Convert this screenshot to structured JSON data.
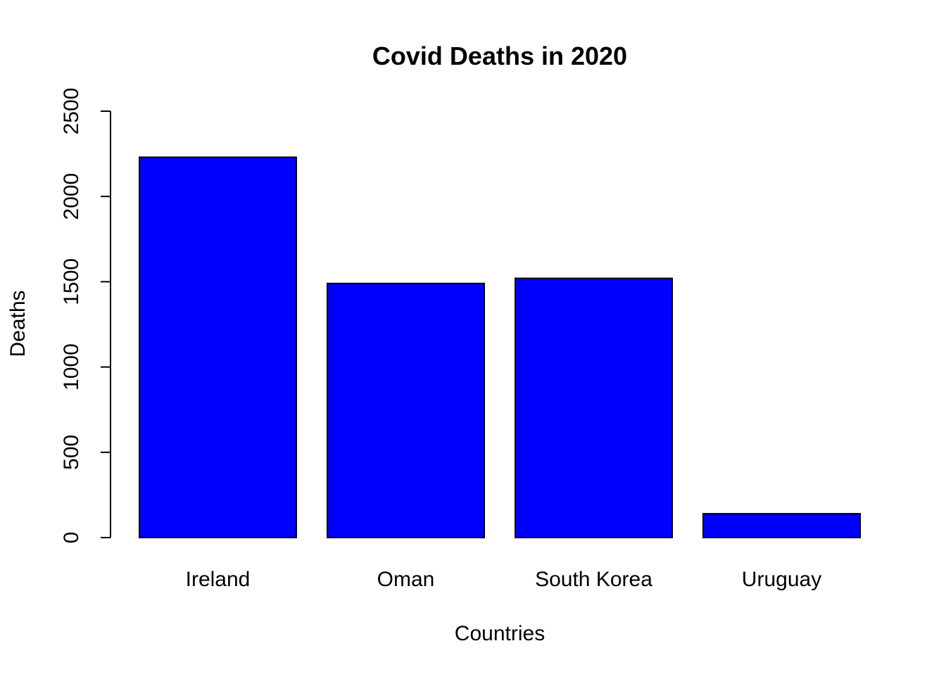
{
  "chart_data": {
    "type": "bar",
    "title": "Covid Deaths in 2020",
    "xlabel": "Countries",
    "ylabel": "Deaths",
    "categories": [
      "Ireland",
      "Oman",
      "South Korea",
      "Uruguay"
    ],
    "values": [
      2230,
      1490,
      1520,
      140
    ],
    "ylim": [
      0,
      2500
    ],
    "yticks": [
      0,
      500,
      1000,
      1500,
      2000,
      2500
    ],
    "ytick_labels": [
      "0",
      "500",
      "1000",
      "1500",
      "2000",
      "2500"
    ],
    "grid": false,
    "legend": "none",
    "colors": {
      "bar_fill": "#0000ff",
      "bar_stroke": "#000000",
      "axis": "#000000",
      "background": "#ffffff"
    }
  }
}
